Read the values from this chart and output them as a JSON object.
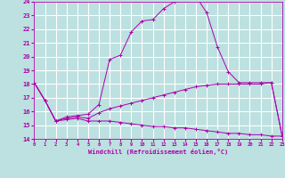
{
  "xlabel": "Windchill (Refroidissement éolien,°C)",
  "background_color": "#bde0e0",
  "grid_color": "#ffffff",
  "line_color": "#aa00aa",
  "xmin": 0,
  "xmax": 23,
  "ymin": 14,
  "ymax": 24,
  "curve1_x": [
    0,
    1,
    2,
    3,
    4,
    5,
    6,
    7,
    8,
    9,
    10,
    11,
    12,
    13,
    14,
    15,
    16,
    17,
    18,
    19,
    20,
    21,
    22,
    23
  ],
  "curve1_y": [
    18.1,
    16.8,
    15.3,
    15.6,
    15.7,
    15.8,
    16.5,
    19.8,
    20.1,
    21.8,
    22.6,
    22.7,
    23.5,
    24.0,
    24.1,
    24.4,
    23.2,
    20.7,
    18.9,
    18.1,
    18.1,
    18.1,
    18.1,
    14.2
  ],
  "curve2_x": [
    0,
    1,
    2,
    3,
    4,
    5,
    6,
    7,
    8,
    9,
    10,
    11,
    12,
    13,
    14,
    15,
    16,
    17,
    18,
    19,
    20,
    21,
    22,
    23
  ],
  "curve2_y": [
    18.1,
    16.8,
    15.3,
    15.5,
    15.6,
    15.5,
    15.9,
    16.2,
    16.4,
    16.6,
    16.8,
    17.0,
    17.2,
    17.4,
    17.6,
    17.8,
    17.9,
    18.0,
    18.0,
    18.0,
    18.0,
    18.0,
    18.1,
    14.2
  ],
  "curve3_x": [
    0,
    1,
    2,
    3,
    4,
    5,
    6,
    7,
    8,
    9,
    10,
    11,
    12,
    13,
    14,
    15,
    16,
    17,
    18,
    19,
    20,
    21,
    22,
    23
  ],
  "curve3_y": [
    18.1,
    16.8,
    15.3,
    15.4,
    15.5,
    15.3,
    15.3,
    15.3,
    15.2,
    15.1,
    15.0,
    14.9,
    14.9,
    14.8,
    14.8,
    14.7,
    14.6,
    14.5,
    14.4,
    14.4,
    14.3,
    14.3,
    14.2,
    14.2
  ]
}
